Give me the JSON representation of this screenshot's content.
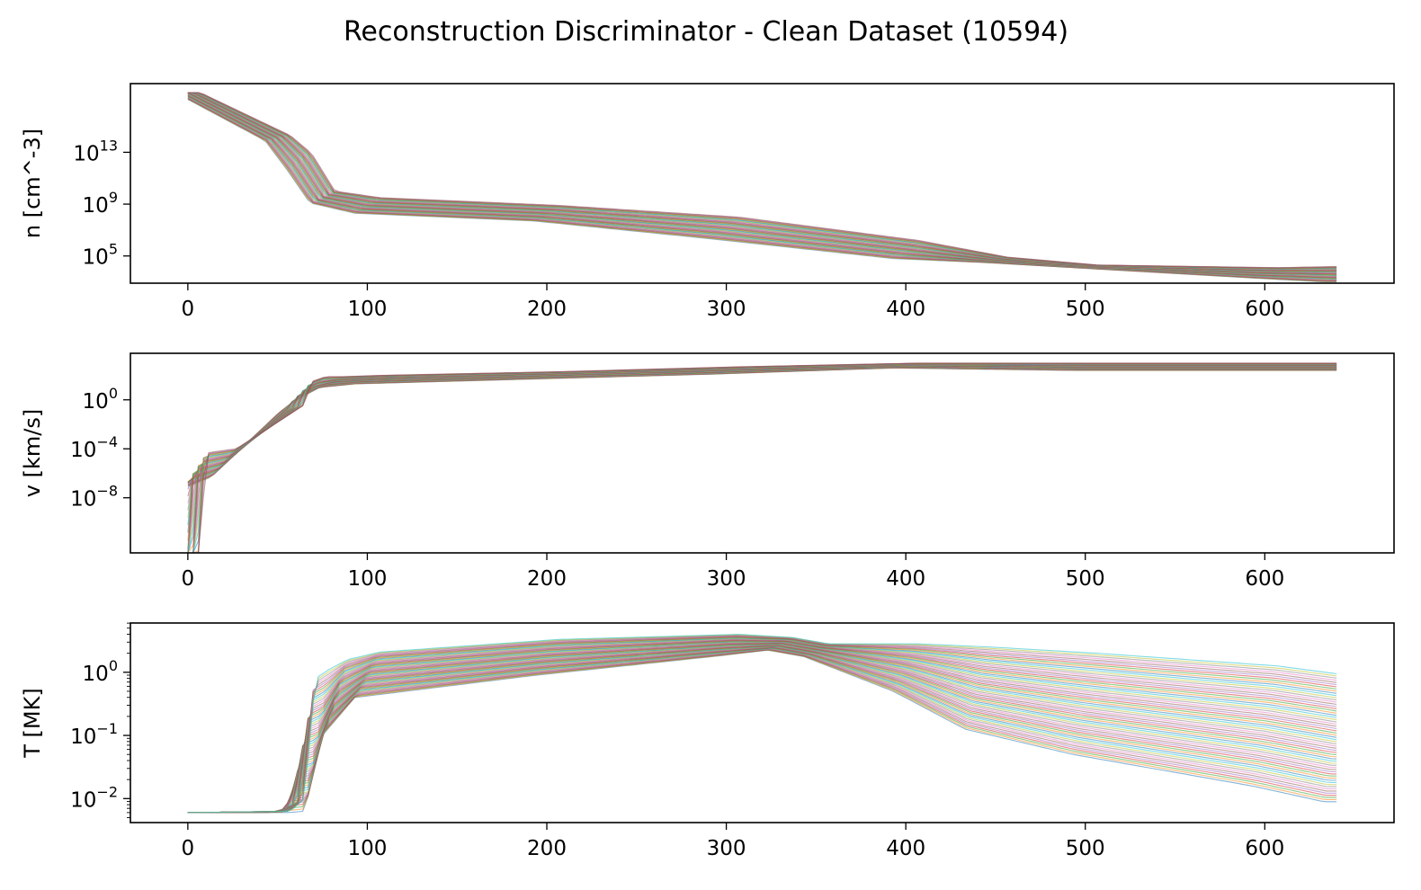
{
  "chart_data": {
    "type": "line",
    "title": "Reconstruction Discriminator - Clean Dataset (10594)",
    "colors": [
      "#1f77b4",
      "#ff7f0e",
      "#2ca02c",
      "#d62728",
      "#9467bd",
      "#8c564b",
      "#e377c2",
      "#7f7f7f",
      "#bcbd22",
      "#17becf"
    ],
    "panels": [
      {
        "id": "density",
        "ylabel": "n [cm^-3]",
        "yscale": "log",
        "xlim": [
          -32,
          672
        ],
        "ylim_log10": [
          2.9,
          18.3
        ],
        "xticks": [
          0,
          100,
          200,
          300,
          400,
          500,
          600
        ],
        "yticks": [
          {
            "base": "10",
            "exp": "13",
            "log10": 13
          },
          {
            "base": "10",
            "exp": "9",
            "log10": 9
          },
          {
            "base": "10",
            "exp": "5",
            "log10": 5
          }
        ],
        "envelope_x": [
          0,
          50,
          62,
          75,
          100,
          200,
          300,
          400,
          450,
          500,
          600,
          640
        ],
        "envelope_low_log10": [
          17.6,
          13.9,
          11.7,
          9.1,
          8.3,
          7.7,
          6.3,
          4.8,
          4.5,
          4.1,
          3.3,
          3.0
        ],
        "envelope_high_log10": [
          17.6,
          14.3,
          12.9,
          10.0,
          9.5,
          8.9,
          8.0,
          6.2,
          4.9,
          4.3,
          4.1,
          4.2
        ],
        "n_lines": 46
      },
      {
        "id": "velocity",
        "ylabel": "v [km/s]",
        "yscale": "log",
        "xlim": [
          -32,
          672
        ],
        "ylim_log10": [
          -12.5,
          3.8
        ],
        "xticks": [
          0,
          100,
          200,
          300,
          400,
          500,
          600
        ],
        "yticks": [
          {
            "base": "10",
            "exp": "0",
            "log10": 0
          },
          {
            "base": "10",
            "exp": "−4",
            "log10": -4
          },
          {
            "base": "10",
            "exp": "−8",
            "log10": -8
          }
        ],
        "envelope_x": [
          0,
          3,
          5,
          20,
          58,
          62,
          70,
          80,
          100,
          200,
          300,
          400,
          500,
          640
        ],
        "envelope_low_log10": [
          -12.5,
          -7.6,
          -7.2,
          -6.3,
          -1.0,
          -0.6,
          0.2,
          1.0,
          1.3,
          1.7,
          2.1,
          2.6,
          2.4,
          2.4
        ],
        "envelope_high_log10": [
          -12.5,
          -4.4,
          -4.3,
          -4.0,
          -0.4,
          1.5,
          1.9,
          1.9,
          2.0,
          2.3,
          2.7,
          3.0,
          3.0,
          3.0
        ],
        "n_lines": 46
      },
      {
        "id": "temperature",
        "ylabel": "T [MK]",
        "yscale": "log",
        "xlim": [
          -32,
          672
        ],
        "ylim_log10": [
          -2.38,
          0.78
        ],
        "xticks": [
          0,
          100,
          200,
          300,
          400,
          500,
          600
        ],
        "yticks": [
          {
            "base": "10",
            "exp": "0",
            "log10": 0
          },
          {
            "base": "10",
            "exp": "−1",
            "log10": -1
          },
          {
            "base": "10",
            "exp": "−2",
            "log10": -2
          }
        ],
        "envelope_x": [
          0,
          50,
          58,
          64,
          72,
          82,
          100,
          200,
          300,
          330,
          350,
          400,
          440,
          500,
          600,
          640
        ],
        "envelope_low_log10": [
          -2.22,
          -2.22,
          -2.22,
          -2.22,
          -2.2,
          -1.0,
          -0.4,
          -0.05,
          0.25,
          0.35,
          0.25,
          -0.3,
          -0.9,
          -1.3,
          -1.8,
          -2.05
        ],
        "envelope_high_log10": [
          -2.22,
          -2.2,
          -2.0,
          -0.1,
          0.05,
          0.2,
          0.32,
          0.52,
          0.6,
          0.55,
          0.45,
          0.45,
          0.4,
          0.3,
          0.1,
          -0.05
        ],
        "n_lines": 60
      }
    ]
  }
}
